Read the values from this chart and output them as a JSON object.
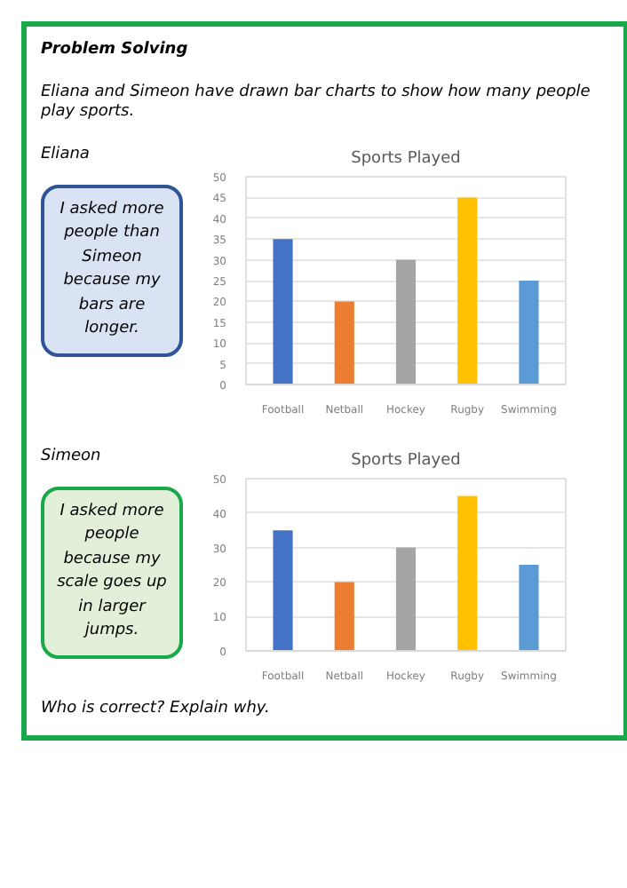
{
  "chart_data": [
    {
      "type": "bar",
      "title": "Sports Played",
      "categories": [
        "Football",
        "Netball",
        "Hockey",
        "Rugby",
        "Swimming"
      ],
      "values": [
        35,
        20,
        30,
        45,
        25
      ],
      "colors": [
        "#4472c4",
        "#ed7d31",
        "#a5a5a5",
        "#ffc000",
        "#5b9bd5"
      ],
      "ylim": [
        0,
        50
      ],
      "yticks": [
        0,
        5,
        10,
        15,
        20,
        25,
        30,
        35,
        40,
        45,
        50
      ],
      "grid": "y",
      "annotations": [
        "Problem Solving",
        "Eliana and Simeon have drawn bar charts to show how many people play sports.",
        "Eliana",
        "I asked more people than Simeon because my bars are longer."
      ]
    },
    {
      "type": "bar",
      "title": "Sports Played",
      "categories": [
        "Football",
        "Netball",
        "Hockey",
        "Rugby",
        "Swimming"
      ],
      "values": [
        35,
        20,
        30,
        45,
        25
      ],
      "colors": [
        "#4472c4",
        "#ed7d31",
        "#a5a5a5",
        "#ffc000",
        "#5b9bd5"
      ],
      "ylim": [
        0,
        50
      ],
      "yticks": [
        0,
        10,
        20,
        30,
        40,
        50
      ],
      "grid": "y",
      "annotations": [
        "Simeon",
        "I asked more people because my scale goes up in larger jumps.",
        "Who is correct? Explain why."
      ]
    }
  ]
}
